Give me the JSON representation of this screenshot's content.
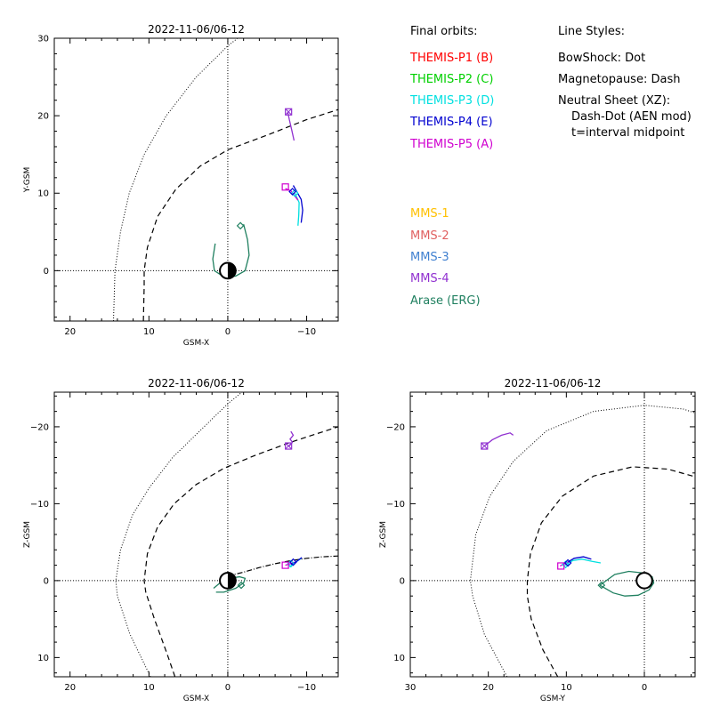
{
  "colors": {
    "p1": "#ff0000",
    "p2": "#00d000",
    "p3": "#00e0e0",
    "p4": "#0000d0",
    "p5": "#d000d0",
    "mms1": "#ffc000",
    "mms2": "#e06060",
    "mms3": "#4080d0",
    "mms4": "#9030d0",
    "erg": "#208060"
  },
  "legend": {
    "final_orbits_title": "Final orbits:",
    "spacecraft": [
      {
        "label": "THEMIS-P1 (B)",
        "color_key": "p1"
      },
      {
        "label": "THEMIS-P2 (C)",
        "color_key": "p2"
      },
      {
        "label": "THEMIS-P3 (D)",
        "color_key": "p3"
      },
      {
        "label": "THEMIS-P4 (E)",
        "color_key": "p4"
      },
      {
        "label": "THEMIS-P5 (A)",
        "color_key": "p5"
      }
    ],
    "mms": [
      {
        "label": "MMS-1",
        "color_key": "mms1"
      },
      {
        "label": "MMS-2",
        "color_key": "mms2"
      },
      {
        "label": "MMS-3",
        "color_key": "mms3"
      },
      {
        "label": "MMS-4",
        "color_key": "mms4"
      },
      {
        "label": "Arase (ERG)",
        "color_key": "erg"
      }
    ],
    "line_styles_title": "Line Styles:",
    "line_styles": [
      "BowShock: Dot",
      "Magnetopause: Dash",
      "Neutral Sheet (XZ):",
      "Dash-Dot (AEN mod)",
      "t=interval midpoint"
    ]
  },
  "chart_data": [
    {
      "id": "xy",
      "type": "line",
      "title": "2022-11-06/06-12",
      "xlabel": "GSM-X",
      "ylabel": "Y-GSM",
      "xlim": [
        22,
        -14
      ],
      "ylim": [
        30,
        -6.5
      ],
      "xticks": [
        20,
        10,
        0,
        -10
      ],
      "yticks": [
        0,
        10,
        20,
        30
      ],
      "bowshock": [
        [
          14.5,
          -6.5
        ],
        [
          14.3,
          0
        ],
        [
          13.6,
          5
        ],
        [
          12.5,
          10
        ],
        [
          10.6,
          15
        ],
        [
          7.8,
          20
        ],
        [
          4,
          25
        ],
        [
          0,
          29
        ],
        [
          -2.5,
          31
        ]
      ],
      "magnetopause": [
        [
          10.7,
          -6.5
        ],
        [
          10.6,
          -2
        ],
        [
          10.6,
          0
        ],
        [
          10.2,
          3
        ],
        [
          8.9,
          7
        ],
        [
          6.6,
          10.5
        ],
        [
          3.5,
          13.5
        ],
        [
          0,
          15.6
        ],
        [
          -5,
          17.5
        ],
        [
          -10,
          19.5
        ],
        [
          -14,
          20.8
        ]
      ],
      "earth": {
        "x": 0,
        "y": 0,
        "r": 1
      },
      "orbits": [
        {
          "color_key": "erg",
          "points": [
            [
              -2,
              6
            ],
            [
              -2.5,
              4
            ],
            [
              -2.7,
              2
            ],
            [
              -2.2,
              0
            ],
            [
              -1,
              -0.7
            ],
            [
              0.5,
              -0.8
            ],
            [
              1.7,
              0
            ],
            [
              1.9,
              1.5
            ],
            [
              1.6,
              3.5
            ]
          ]
        },
        {
          "color_key": "p3",
          "points": [
            [
              -8.9,
              5.8
            ],
            [
              -9.0,
              7.2
            ],
            [
              -9.05,
              8.8
            ],
            [
              -8.5,
              10
            ]
          ]
        },
        {
          "color_key": "p4",
          "points": [
            [
              -9.3,
              6.2
            ],
            [
              -9.5,
              7.8
            ],
            [
              -9.3,
              9.2
            ],
            [
              -8.3,
              11
            ]
          ]
        },
        {
          "color_key": "p5",
          "points": [
            [
              -7.3,
              10.6
            ],
            [
              -8.0,
              10.3
            ],
            [
              -8.9,
              9.1
            ]
          ]
        },
        {
          "color_key": "mms4",
          "points": [
            [
              -8.4,
              16.8
            ],
            [
              -8.1,
              18.2
            ],
            [
              -7.8,
              19.5
            ],
            [
              -7.6,
              20.5
            ]
          ]
        }
      ],
      "markers": [
        {
          "color_key": "erg",
          "shape": "diamond",
          "x": -1.6,
          "y": 5.8
        },
        {
          "color_key": "p3",
          "shape": "diamond",
          "x": -8.5,
          "y": 10
        },
        {
          "color_key": "p4",
          "shape": "diamond",
          "x": -8.2,
          "y": 10.2
        },
        {
          "color_key": "p5",
          "shape": "square",
          "x": -7.3,
          "y": 10.8
        },
        {
          "color_key": "mms4",
          "shape": "squarex",
          "x": -7.7,
          "y": 20.5
        }
      ]
    },
    {
      "id": "xz",
      "type": "line",
      "title": "2022-11-06/06-12",
      "xlabel": "GSM-X",
      "ylabel": "Z-GSM",
      "xlim": [
        22,
        -14
      ],
      "ylim": [
        -24.5,
        12.5
      ],
      "xticks": [
        20,
        10,
        0,
        -10
      ],
      "yticks": [
        10,
        0,
        -10,
        -20
      ],
      "bowshock": [
        [
          9.8,
          12.5
        ],
        [
          12.4,
          7
        ],
        [
          14,
          2
        ],
        [
          14.2,
          0
        ],
        [
          13.6,
          -4
        ],
        [
          12.1,
          -8.5
        ],
        [
          10,
          -12
        ],
        [
          7,
          -16
        ],
        [
          3.5,
          -19.5
        ],
        [
          0,
          -23
        ],
        [
          -1.8,
          -24.5
        ]
      ],
      "magnetopause": [
        [
          6.7,
          12.5
        ],
        [
          7.7,
          9.5
        ],
        [
          9.3,
          5
        ],
        [
          10.4,
          1.5
        ],
        [
          10.6,
          0
        ],
        [
          10.2,
          -3.5
        ],
        [
          8.9,
          -7
        ],
        [
          6.8,
          -10
        ],
        [
          4,
          -12.5
        ],
        [
          0.5,
          -14.6
        ],
        [
          -3.5,
          -16.3
        ],
        [
          -8,
          -18
        ],
        [
          -14,
          -20
        ]
      ],
      "earth": {
        "x": 0,
        "y": 0,
        "r": 1
      },
      "neutral_sheet": [
        [
          0,
          -0.6
        ],
        [
          -2,
          -1.1
        ],
        [
          -4,
          -1.7
        ],
        [
          -6,
          -2.2
        ],
        [
          -8,
          -2.6
        ],
        [
          -10,
          -2.9
        ],
        [
          -12,
          -3.1
        ],
        [
          -14,
          -3.2
        ]
      ],
      "orbits": [
        {
          "color_key": "erg",
          "points": [
            [
              1.5,
              1.5
            ],
            [
              0.5,
              1.5
            ],
            [
              -1,
              1
            ],
            [
              -2,
              0.3
            ],
            [
              -2.2,
              -0.3
            ],
            [
              -1.5,
              -0.5
            ],
            [
              -0.2,
              -0.3
            ],
            [
              1,
              0.3
            ],
            [
              1.8,
              1
            ]
          ]
        },
        {
          "color_key": "p3",
          "points": [
            [
              -7.8,
              -1.8
            ],
            [
              -8.4,
              -2.2
            ],
            [
              -8.9,
              -2.6
            ],
            [
              -9.3,
              -2.9
            ]
          ]
        },
        {
          "color_key": "p4",
          "points": [
            [
              -8,
              -2.1
            ],
            [
              -8.6,
              -2.4
            ],
            [
              -9.0,
              -2.7
            ],
            [
              -9.4,
              -3
            ]
          ]
        },
        {
          "color_key": "p5",
          "points": [
            [
              -7.3,
              -2
            ],
            [
              -7.9,
              -2.2
            ],
            [
              -8.4,
              -2.4
            ]
          ]
        },
        {
          "color_key": "mms4",
          "points": [
            [
              -7.8,
              -17.5
            ],
            [
              -8.2,
              -18
            ],
            [
              -7.9,
              -18.4
            ],
            [
              -8.3,
              -18.9
            ],
            [
              -8.0,
              -19.4
            ]
          ]
        }
      ],
      "markers": [
        {
          "color_key": "erg",
          "shape": "diamond",
          "x": -1.7,
          "y": 0.6
        },
        {
          "color_key": "p3",
          "shape": "diamond",
          "x": -8.0,
          "y": -2.2
        },
        {
          "color_key": "p4",
          "shape": "diamond",
          "x": -8.3,
          "y": -2.4
        },
        {
          "color_key": "p5",
          "shape": "square",
          "x": -7.3,
          "y": -2.0
        },
        {
          "color_key": "mms4",
          "shape": "squarex",
          "x": -7.7,
          "y": -17.5
        }
      ]
    },
    {
      "id": "yz",
      "type": "line",
      "title": "2022-11-06/06-12",
      "xlabel": "GSM-Y",
      "ylabel": "Z-GSM",
      "xlim": [
        30,
        -6.5
      ],
      "ylim": [
        -24.5,
        12.5
      ],
      "xticks": [
        30,
        20,
        10,
        0
      ],
      "yticks": [
        10,
        0,
        -10,
        -20
      ],
      "bowshock": [
        [
          17.6,
          12.5
        ],
        [
          20.5,
          7
        ],
        [
          22,
          2
        ],
        [
          22.3,
          0
        ],
        [
          21.6,
          -6
        ],
        [
          19.8,
          -11
        ],
        [
          16.8,
          -15.5
        ],
        [
          12.5,
          -19.5
        ],
        [
          6.5,
          -22
        ],
        [
          0,
          -22.8
        ],
        [
          -5,
          -22.3
        ],
        [
          -6.5,
          -21.8
        ]
      ],
      "magnetopause": [
        [
          11.1,
          12.5
        ],
        [
          13,
          9
        ],
        [
          14.5,
          5
        ],
        [
          15,
          2
        ],
        [
          15,
          0
        ],
        [
          14.6,
          -3.5
        ],
        [
          13.2,
          -7.5
        ],
        [
          10.5,
          -11
        ],
        [
          6.5,
          -13.6
        ],
        [
          1.5,
          -14.8
        ],
        [
          -3,
          -14.5
        ],
        [
          -6.5,
          -13.5
        ]
      ],
      "earth": {
        "x": 0,
        "y": 0,
        "r": 1
      },
      "orbits": [
        {
          "color_key": "erg",
          "points": [
            [
              5.7,
              0.6
            ],
            [
              4,
              1.6
            ],
            [
              2.5,
              2
            ],
            [
              0.8,
              1.9
            ],
            [
              -0.6,
              1.2
            ],
            [
              -1.2,
              0.3
            ],
            [
              -1,
              -0.5
            ],
            [
              0.2,
              -1
            ],
            [
              2,
              -1.2
            ],
            [
              3.8,
              -0.8
            ],
            [
              5.7,
              0.6
            ]
          ]
        },
        {
          "color_key": "p3",
          "points": [
            [
              10.2,
              -2
            ],
            [
              9.2,
              -2.6
            ],
            [
              8,
              -2.8
            ],
            [
              6.7,
              -2.5
            ],
            [
              5.6,
              -2.3
            ]
          ]
        },
        {
          "color_key": "p4",
          "points": [
            [
              10,
              -2.3
            ],
            [
              9,
              -2.9
            ],
            [
              7.8,
              -3.1
            ],
            [
              6.8,
              -2.8
            ]
          ]
        },
        {
          "color_key": "p5",
          "points": [
            [
              10.8,
              -1.9
            ],
            [
              10.3,
              -2.2
            ],
            [
              9.7,
              -2.4
            ]
          ]
        },
        {
          "color_key": "mms4",
          "points": [
            [
              20.5,
              -17.5
            ],
            [
              19.5,
              -18.3
            ],
            [
              18.3,
              -18.9
            ],
            [
              17.2,
              -19.2
            ],
            [
              16.8,
              -18.9
            ]
          ]
        }
      ],
      "markers": [
        {
          "color_key": "erg",
          "shape": "diamond",
          "x": 5.5,
          "y": 0.6
        },
        {
          "color_key": "p3",
          "shape": "diamond",
          "x": 10.1,
          "y": -2.1
        },
        {
          "color_key": "p4",
          "shape": "diamond",
          "x": 9.8,
          "y": -2.3
        },
        {
          "color_key": "p5",
          "shape": "square",
          "x": 10.7,
          "y": -1.9
        },
        {
          "color_key": "mms4",
          "shape": "squarex",
          "x": 20.5,
          "y": -17.5
        }
      ]
    }
  ]
}
